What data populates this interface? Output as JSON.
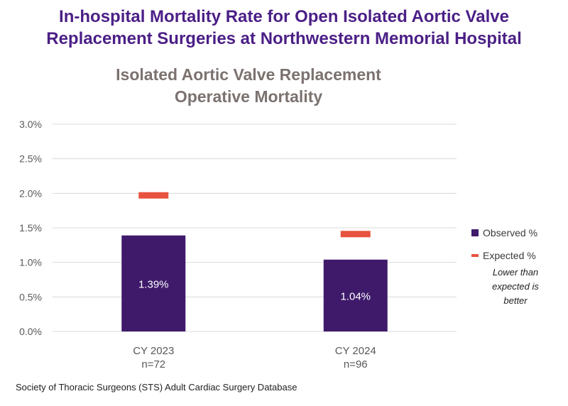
{
  "header": {
    "title_line1": "In-hospital Mortality Rate for Open Isolated Aortic Valve",
    "title_line2": "Replacement Surgeries at Northwestern Memorial Hospital"
  },
  "legend": {
    "observed_label": "Observed %",
    "expected_label": "Expected %",
    "note": "Lower than expected is better"
  },
  "footer": {
    "source": "Society of Thoracic Surgeons (STS) Adult Cardiac Surgery Database"
  },
  "colors": {
    "observed": "#3f1a6b",
    "expected": "#e8533f",
    "title": "#4b1f86",
    "chart_title": "#7b726f",
    "grid": "#d9d9d9",
    "axis_text": "#595959"
  },
  "chart_data": {
    "type": "bar",
    "title_line1": "Isolated Aortic Valve Replacement",
    "title_line2": "Operative Mortality",
    "categories": [
      "CY 2023",
      "CY 2024"
    ],
    "category_sublabels": [
      "n=72",
      "n=96"
    ],
    "series": [
      {
        "name": "Observed %",
        "values": [
          1.39,
          1.04
        ],
        "data_labels": [
          "1.39%",
          "1.04%"
        ]
      },
      {
        "name": "Expected %",
        "values": [
          1.97,
          1.41
        ]
      }
    ],
    "ylim": [
      0,
      3.0
    ],
    "yticks": [
      0,
      0.5,
      1.0,
      1.5,
      2.0,
      2.5,
      3.0
    ],
    "ytick_labels": [
      "0.0%",
      "0.5%",
      "1.0%",
      "1.5%",
      "2.0%",
      "2.5%",
      "3.0%"
    ],
    "grid": true,
    "legend_position": "right"
  }
}
